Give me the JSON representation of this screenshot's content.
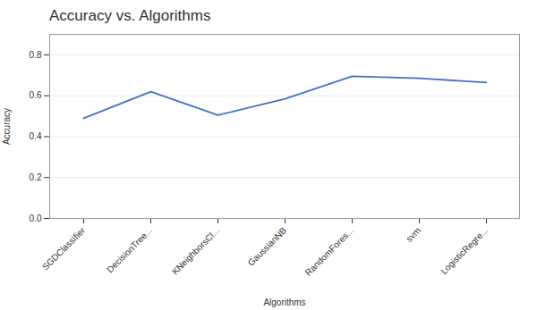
{
  "chart_data": {
    "type": "line",
    "title": "Accuracy vs. Algorithms",
    "xlabel": "Algorithms",
    "ylabel": "Accuracy",
    "categories": [
      "SGDClassifier",
      "DecisionTree...",
      "KNeighborsCl...",
      "GaussianNB",
      "RandomFores...",
      "svm",
      "LogisticRegre..."
    ],
    "values": [
      0.49,
      0.62,
      0.505,
      0.585,
      0.695,
      0.685,
      0.665
    ],
    "color": "#4472C4",
    "ylim": [
      0.0,
      0.9
    ],
    "yticks": [
      {
        "value": 0.0,
        "label": "0.0"
      },
      0.2,
      0.4,
      0.6,
      0.8
    ],
    "grid": true
  }
}
